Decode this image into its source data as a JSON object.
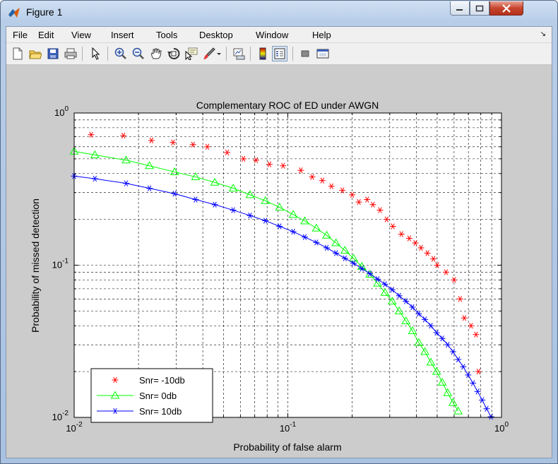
{
  "window": {
    "title": "Figure 1",
    "icon": "matlab-icon"
  },
  "menu": {
    "items": [
      "File",
      "Edit",
      "View",
      "Insert",
      "Tools",
      "Desktop",
      "Window",
      "Help"
    ]
  },
  "toolbar": {
    "buttons": [
      "new-figure-icon",
      "open-file-icon",
      "save-icon",
      "print-icon",
      "edit-plot-icon",
      "zoom-in-icon",
      "zoom-out-icon",
      "pan-icon",
      "rotate-3d-icon",
      "data-cursor-icon",
      "brush-icon",
      "link-plot-icon",
      "colorbar-icon",
      "legend-icon",
      "hide-plot-tools-icon",
      "show-plot-tools-icon"
    ]
  },
  "chart_data": {
    "type": "line",
    "title": "Complementary ROC of ED under AWGN",
    "xlabel": "Probability of false alarm",
    "ylabel": "Probability of missed detection",
    "xscale": "log",
    "yscale": "log",
    "xlim": [
      0.01,
      1
    ],
    "ylim": [
      0.01,
      1
    ],
    "grid": true,
    "legend_location": "bottom-left",
    "x_ticks": [
      {
        "base": "10",
        "exp": "-2"
      },
      {
        "base": "10",
        "exp": "-1"
      },
      {
        "base": "10",
        "exp": "0"
      }
    ],
    "y_ticks": [
      {
        "base": "10",
        "exp": "-2"
      },
      {
        "base": "10",
        "exp": "-1"
      },
      {
        "base": "10",
        "exp": "0"
      }
    ],
    "series": [
      {
        "name": "Snr= -10db",
        "color": "#ff0000",
        "marker": "asterisk",
        "line": false,
        "x": [
          0.012,
          0.017,
          0.023,
          0.029,
          0.036,
          0.042,
          0.052,
          0.062,
          0.071,
          0.082,
          0.095,
          0.115,
          0.13,
          0.145,
          0.16,
          0.18,
          0.2,
          0.215,
          0.235,
          0.25,
          0.27,
          0.29,
          0.31,
          0.34,
          0.37,
          0.395,
          0.42,
          0.45,
          0.48,
          0.5,
          0.55,
          0.6,
          0.64,
          0.67,
          0.72,
          0.76,
          0.78
        ],
        "y": [
          0.72,
          0.71,
          0.66,
          0.64,
          0.62,
          0.6,
          0.55,
          0.5,
          0.49,
          0.46,
          0.45,
          0.42,
          0.38,
          0.36,
          0.33,
          0.31,
          0.29,
          0.26,
          0.27,
          0.25,
          0.23,
          0.2,
          0.18,
          0.16,
          0.15,
          0.14,
          0.13,
          0.12,
          0.11,
          0.1,
          0.09,
          0.08,
          0.06,
          0.045,
          0.04,
          0.035,
          0.02
        ]
      },
      {
        "name": "Snr= 0db",
        "color": "#00ff00",
        "marker": "triangle",
        "line": true,
        "x": [
          0.01,
          0.0125,
          0.0175,
          0.0225,
          0.0295,
          0.037,
          0.0455,
          0.0555,
          0.0665,
          0.0785,
          0.0915,
          0.106,
          0.12,
          0.136,
          0.152,
          0.168,
          0.185,
          0.203,
          0.222,
          0.242,
          0.263,
          0.285,
          0.308,
          0.332,
          0.357,
          0.383,
          0.41,
          0.438,
          0.467,
          0.497,
          0.528,
          0.56,
          0.593,
          0.627,
          0.662,
          0.698
        ],
        "y": [
          0.56,
          0.53,
          0.49,
          0.45,
          0.41,
          0.38,
          0.35,
          0.32,
          0.29,
          0.265,
          0.24,
          0.215,
          0.195,
          0.175,
          0.157,
          0.14,
          0.125,
          0.111,
          0.098,
          0.087,
          0.076,
          0.066,
          0.058,
          0.05,
          0.043,
          0.037,
          0.031,
          0.027,
          0.023,
          0.02,
          0.017,
          0.0145,
          0.0125,
          0.011,
          0.0095,
          0.0085
        ]
      },
      {
        "name": "Snr= 10db",
        "color": "#0000ff",
        "marker": "asterisk",
        "line": true,
        "x": [
          0.01,
          0.0125,
          0.0175,
          0.0225,
          0.0295,
          0.037,
          0.0455,
          0.0555,
          0.0665,
          0.0785,
          0.0915,
          0.106,
          0.12,
          0.136,
          0.152,
          0.168,
          0.185,
          0.203,
          0.222,
          0.242,
          0.263,
          0.285,
          0.308,
          0.332,
          0.357,
          0.383,
          0.41,
          0.438,
          0.467,
          0.497,
          0.528,
          0.56,
          0.593,
          0.627,
          0.662,
          0.698,
          0.735,
          0.773,
          0.812,
          0.852,
          0.893,
          0.935
        ],
        "y": [
          0.385,
          0.37,
          0.345,
          0.32,
          0.295,
          0.27,
          0.25,
          0.23,
          0.212,
          0.196,
          0.18,
          0.166,
          0.153,
          0.141,
          0.13,
          0.12,
          0.111,
          0.103,
          0.095,
          0.088,
          0.081,
          0.075,
          0.069,
          0.063,
          0.058,
          0.053,
          0.048,
          0.044,
          0.04,
          0.036,
          0.033,
          0.03,
          0.027,
          0.024,
          0.0215,
          0.019,
          0.0168,
          0.0148,
          0.013,
          0.0114,
          0.0101,
          0.0092
        ]
      }
    ]
  }
}
